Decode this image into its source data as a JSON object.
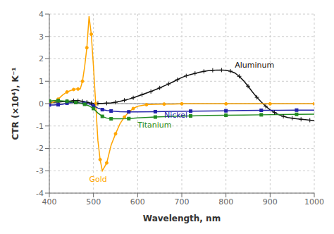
{
  "chart_data": {
    "type": "line",
    "title": "",
    "xlabel": "Wavelength, nm",
    "ylabel": "CTR (×10⁴), K⁻¹",
    "xlim": [
      400,
      1000
    ],
    "ylim": [
      -4,
      4
    ],
    "xticks": [
      400,
      500,
      600,
      700,
      800,
      900,
      1000
    ],
    "yticks": [
      -4,
      -3,
      -2,
      -1,
      0,
      1,
      2,
      3,
      4
    ],
    "grid": true,
    "series": [
      {
        "name": "Aluminum",
        "color": "#111111",
        "marker": "plus",
        "x": [
          400,
          410,
          420,
          430,
          440,
          450,
          455,
          460,
          465,
          470,
          475,
          480,
          485,
          490,
          495,
          500,
          510,
          520,
          530,
          540,
          550,
          560,
          570,
          580,
          590,
          600,
          610,
          620,
          630,
          640,
          650,
          660,
          670,
          680,
          690,
          700,
          710,
          720,
          730,
          740,
          750,
          760,
          770,
          780,
          790,
          800,
          810,
          820,
          830,
          840,
          850,
          860,
          870,
          880,
          890,
          900,
          910,
          920,
          930,
          940,
          950,
          960,
          970,
          980,
          990,
          1000
        ],
        "values": [
          0.05,
          0.06,
          0.07,
          0.09,
          0.1,
          0.12,
          0.13,
          0.13,
          0.13,
          0.12,
          0.1,
          0.08,
          0.06,
          0.04,
          0.02,
          0.01,
          0.01,
          0.01,
          0.02,
          0.03,
          0.06,
          0.1,
          0.15,
          0.2,
          0.26,
          0.33,
          0.4,
          0.47,
          0.54,
          0.62,
          0.7,
          0.79,
          0.88,
          0.97,
          1.07,
          1.17,
          1.24,
          1.3,
          1.35,
          1.4,
          1.44,
          1.47,
          1.49,
          1.5,
          1.5,
          1.49,
          1.45,
          1.37,
          1.22,
          1.02,
          0.78,
          0.52,
          0.28,
          0.07,
          -0.12,
          -0.28,
          -0.4,
          -0.5,
          -0.57,
          -0.62,
          -0.65,
          -0.68,
          -0.7,
          -0.72,
          -0.74,
          -0.76
        ],
        "annotation": {
          "x": 820,
          "y": 1.52,
          "text": "Aluminum"
        }
      },
      {
        "name": "Gold",
        "color": "#FFA500",
        "marker": "circle",
        "x": [
          400,
          410,
          420,
          430,
          440,
          450,
          455,
          460,
          465,
          470,
          475,
          480,
          485,
          490,
          495,
          500,
          505,
          510,
          515,
          520,
          530,
          540,
          550,
          560,
          570,
          580,
          590,
          600,
          620,
          640,
          660,
          680,
          700,
          750,
          800,
          850,
          900,
          950,
          1000
        ],
        "values": [
          0.0,
          0.08,
          0.2,
          0.38,
          0.52,
          0.6,
          0.63,
          0.65,
          0.65,
          0.65,
          1.0,
          1.65,
          2.5,
          3.9,
          3.1,
          1.65,
          0.0,
          -1.65,
          -2.5,
          -3.0,
          -2.65,
          -1.85,
          -1.35,
          -0.9,
          -0.6,
          -0.38,
          -0.22,
          -0.12,
          -0.05,
          -0.03,
          -0.02,
          -0.02,
          -0.01,
          -0.01,
          -0.01,
          -0.01,
          -0.01,
          -0.01,
          -0.01
        ],
        "annotation": {
          "x": 490,
          "y": -3.15,
          "text": "Gold"
        }
      },
      {
        "name": "Nickel",
        "color": "#2222AA",
        "marker": "square",
        "x": [
          400,
          410,
          420,
          430,
          440,
          450,
          460,
          470,
          480,
          490,
          500,
          510,
          520,
          530,
          540,
          560,
          580,
          600,
          640,
          680,
          720,
          760,
          800,
          840,
          880,
          920,
          960,
          1000
        ],
        "values": [
          -0.06,
          -0.06,
          -0.05,
          -0.03,
          0.02,
          0.05,
          0.05,
          0.03,
          0.02,
          -0.02,
          -0.1,
          -0.2,
          -0.27,
          -0.31,
          -0.33,
          -0.36,
          -0.37,
          -0.37,
          -0.36,
          -0.35,
          -0.34,
          -0.33,
          -0.32,
          -0.31,
          -0.3,
          -0.3,
          -0.29,
          -0.29
        ],
        "annotation": {
          "x": 660,
          "y": -0.28,
          "text": "Nickel"
        }
      },
      {
        "name": "Titanium",
        "color": "#228B22",
        "marker": "square",
        "x": [
          400,
          410,
          420,
          430,
          440,
          450,
          460,
          470,
          480,
          490,
          500,
          510,
          520,
          530,
          540,
          560,
          580,
          600,
          640,
          680,
          720,
          760,
          800,
          840,
          880,
          920,
          960,
          1000
        ],
        "values": [
          0.12,
          0.13,
          0.13,
          0.12,
          0.1,
          0.08,
          0.05,
          0.02,
          -0.03,
          -0.1,
          -0.22,
          -0.42,
          -0.57,
          -0.65,
          -0.68,
          -0.68,
          -0.67,
          -0.64,
          -0.6,
          -0.57,
          -0.55,
          -0.53,
          -0.52,
          -0.51,
          -0.5,
          -0.49,
          -0.48,
          -0.47
        ],
        "annotation": {
          "x": 600,
          "y": -0.73,
          "text": "Titanium"
        }
      }
    ]
  }
}
